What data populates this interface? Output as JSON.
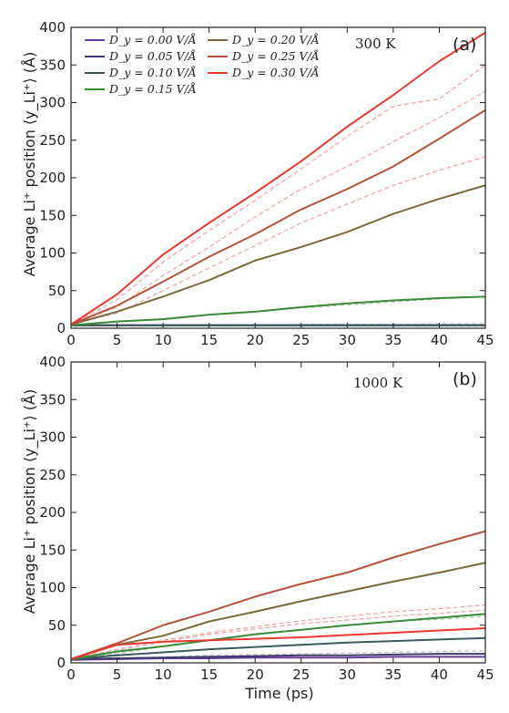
{
  "chart_data": [
    {
      "type": "line",
      "panel_label": "(a)",
      "temperature_label": "300 K",
      "xlabel": "",
      "ylabel": "Average Li⁺ position ⟨y_Li⁺⟩ (Å)",
      "xlim": [
        0,
        45
      ],
      "ylim": [
        0,
        400
      ],
      "xticks": [
        "0",
        "5",
        "10",
        "15",
        "20",
        "25",
        "30",
        "35",
        "40",
        "45"
      ],
      "yticks": [
        "0",
        "50",
        "100",
        "150",
        "200",
        "250",
        "300",
        "350",
        "400"
      ],
      "grid": false,
      "legend_position": "top-left",
      "x": [
        0,
        5,
        10,
        15,
        20,
        25,
        30,
        35,
        40,
        45
      ],
      "series": [
        {
          "name": "D_y = 0.00 V/Å",
          "color": "#6a3d9a",
          "values": [
            4,
            4,
            4,
            4,
            4,
            4,
            4,
            4,
            4,
            4
          ]
        },
        {
          "name": "D_y = 0.05 V/Å",
          "color": "#3b3b6d",
          "values": [
            4,
            4,
            4,
            4,
            4,
            4,
            4,
            4,
            4,
            4
          ]
        },
        {
          "name": "D_y = 0.10 V/Å",
          "color": "#3d5a5a",
          "values": [
            4,
            4,
            4,
            4,
            4,
            4,
            4,
            4,
            4,
            4
          ]
        },
        {
          "name": "D_y = 0.15 V/Å",
          "color": "#3a8a3a",
          "values": [
            4,
            9,
            12,
            18,
            22,
            28,
            33,
            37,
            40,
            42
          ]
        },
        {
          "name": "D_y = 0.20 V/Å",
          "color": "#786a3a",
          "values": [
            5,
            22,
            42,
            64,
            90,
            108,
            128,
            152,
            172,
            190
          ]
        },
        {
          "name": "D_y = 0.25 V/Å",
          "color": "#b5523a",
          "values": [
            5,
            30,
            62,
            95,
            125,
            158,
            185,
            215,
            252,
            290
          ]
        },
        {
          "name": "D_y = 0.30 V/Å",
          "color": "#e8392e",
          "values": [
            5,
            45,
            98,
            140,
            180,
            222,
            268,
            310,
            355,
            393
          ]
        }
      ],
      "dashed_series": [
        {
          "color": "#f0a0a0",
          "values": [
            5,
            20,
            50,
            80,
            110,
            140,
            165,
            190,
            210,
            228
          ]
        },
        {
          "color": "#f0a0a0",
          "values": [
            5,
            28,
            70,
            108,
            148,
            185,
            215,
            248,
            280,
            315
          ]
        },
        {
          "color": "#f0a0a0",
          "values": [
            5,
            38,
            88,
            130,
            170,
            212,
            255,
            295,
            305,
            350
          ]
        },
        {
          "color": "#a8c8a8",
          "values": [
            4,
            9,
            13,
            18,
            22,
            27,
            31,
            35,
            39,
            42
          ]
        },
        {
          "color": "#c0c0c0",
          "values": [
            4,
            4,
            4,
            4,
            4,
            5,
            5,
            5,
            6,
            6
          ]
        }
      ]
    },
    {
      "type": "line",
      "panel_label": "(b)",
      "temperature_label": "1000 K",
      "xlabel": "Time (ps)",
      "ylabel": "Average Li⁺ position ⟨y_Li⁺⟩ (Å)",
      "xlim": [
        0,
        45
      ],
      "ylim": [
        0,
        400
      ],
      "xticks": [
        "0",
        "5",
        "10",
        "15",
        "20",
        "25",
        "30",
        "35",
        "40",
        "45"
      ],
      "yticks": [
        "0",
        "50",
        "100",
        "150",
        "200",
        "250",
        "300",
        "350",
        "400"
      ],
      "grid": false,
      "x": [
        0,
        5,
        10,
        15,
        20,
        25,
        30,
        35,
        40,
        45
      ],
      "series": [
        {
          "name": "D_y = 0.00 V/Å",
          "color": "#6a3d9a",
          "values": [
            4,
            5,
            6,
            6,
            7,
            7,
            7,
            8,
            8,
            8
          ]
        },
        {
          "name": "D_y = 0.05 V/Å",
          "color": "#3b3b6d",
          "values": [
            5,
            6,
            7,
            8,
            9,
            10,
            10,
            11,
            12,
            12
          ]
        },
        {
          "name": "D_y = 0.10 V/Å",
          "color": "#3d5a5a",
          "values": [
            5,
            10,
            14,
            18,
            21,
            24,
            27,
            29,
            31,
            33
          ]
        },
        {
          "name": "D_y = 0.15 V/Å",
          "color": "#3a8a3a",
          "values": [
            5,
            15,
            22,
            30,
            38,
            44,
            50,
            55,
            60,
            65
          ]
        },
        {
          "name": "D_y = 0.20 V/Å",
          "color": "#786a3a",
          "values": [
            5,
            24,
            36,
            55,
            68,
            82,
            95,
            108,
            120,
            133
          ]
        },
        {
          "name": "D_y = 0.25 V/Å",
          "color": "#b5523a",
          "values": [
            5,
            26,
            50,
            68,
            88,
            105,
            120,
            140,
            158,
            175
          ]
        },
        {
          "name": "D_y = 0.30 V/Å",
          "color": "#e8392e",
          "values": [
            5,
            24,
            28,
            30,
            32,
            34,
            37,
            40,
            43,
            46
          ]
        }
      ],
      "dashed_series": [
        {
          "color": "#f0a0a0",
          "values": [
            5,
            16,
            28,
            38,
            45,
            52,
            57,
            62,
            66,
            70
          ]
        },
        {
          "color": "#f0a0a0",
          "values": [
            5,
            18,
            30,
            40,
            48,
            56,
            62,
            68,
            72,
            77
          ]
        },
        {
          "color": "#a8c8a8",
          "values": [
            5,
            12,
            22,
            30,
            38,
            44,
            50,
            55,
            58,
            62
          ]
        },
        {
          "color": "#c0c0c0",
          "values": [
            4,
            6,
            8,
            10,
            11,
            12,
            13,
            14,
            15,
            16
          ]
        }
      ]
    }
  ]
}
